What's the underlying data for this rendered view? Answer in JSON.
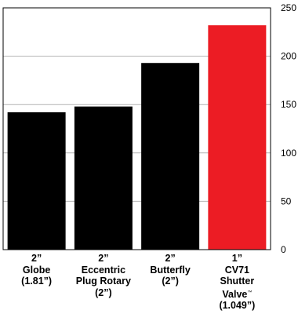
{
  "chart_data": {
    "type": "bar",
    "categories": [
      [
        "2”",
        "Globe",
        "(1.81”)"
      ],
      [
        "2”",
        "Eccentric",
        "Plug Rotary",
        "(2”)"
      ],
      [
        "2”",
        "Butterfly",
        "(2”)"
      ],
      [
        "1”",
        "CV71",
        "Shutter",
        "Valve",
        "(1.049”)"
      ]
    ],
    "trademark_mark": "™",
    "values": [
      142,
      148,
      193,
      232
    ],
    "bar_colors": [
      "#000000",
      "#000000",
      "#000000",
      "#ec1c24"
    ],
    "y_ticks": [
      "0",
      "50",
      "100",
      "150",
      "200",
      "250"
    ],
    "ylim": [
      0,
      250
    ],
    "y_axis_side": "right",
    "grid": true,
    "title": "",
    "xlabel": "",
    "ylabel": ""
  }
}
